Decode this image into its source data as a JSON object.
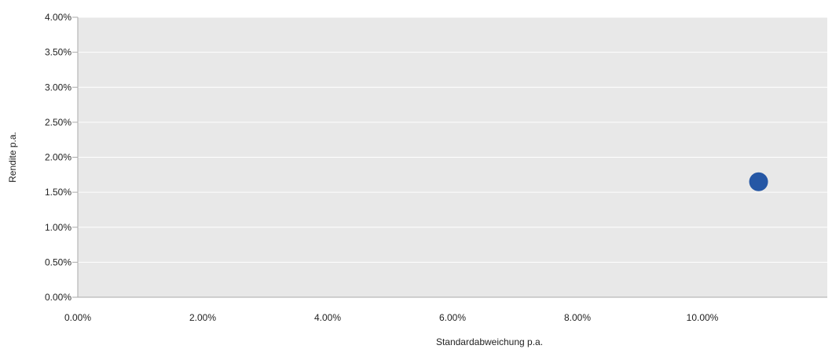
{
  "chart_data": {
    "type": "scatter",
    "title": "",
    "xlabel": "Standardabweichung p.a.",
    "ylabel": "Rendite p.a.",
    "xlim": [
      0,
      12
    ],
    "ylim": [
      0,
      4
    ],
    "x_ticks": [
      "0.00%",
      "2.00%",
      "4.00%",
      "6.00%",
      "8.00%",
      "10.00%"
    ],
    "y_ticks": [
      "0.00%",
      "0.50%",
      "1.00%",
      "1.50%",
      "2.00%",
      "2.50%",
      "3.00%",
      "3.50%",
      "4.00%"
    ],
    "grid": true,
    "legend": "none",
    "series": [
      {
        "points": [
          {
            "x": 10.9,
            "y": 1.65
          }
        ],
        "color": "#2557a5"
      }
    ],
    "colors": {
      "plot_background": "#e8e8e8",
      "gridline": "#ffffff",
      "axis": "#aaaaaa"
    }
  }
}
